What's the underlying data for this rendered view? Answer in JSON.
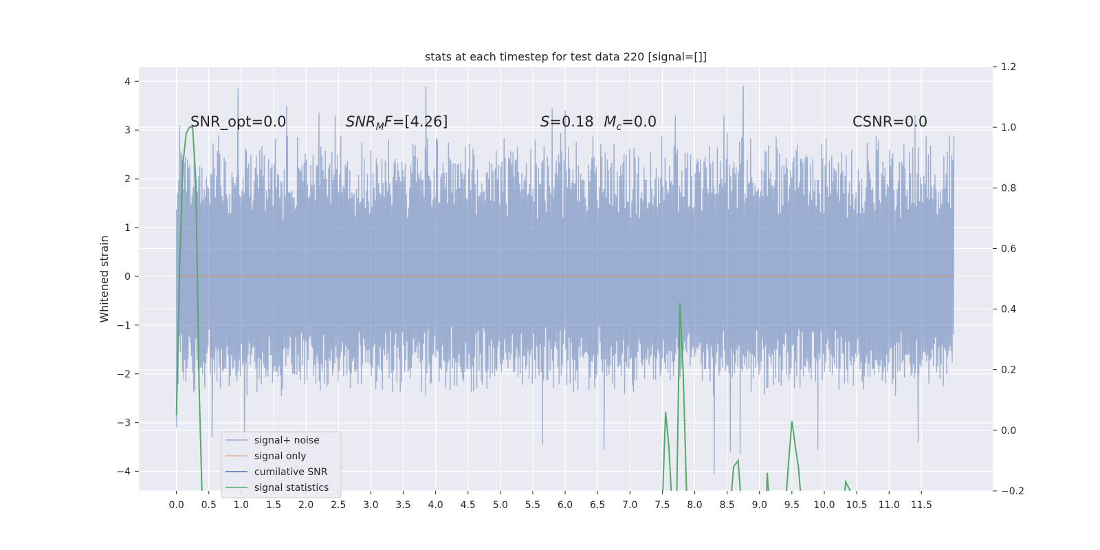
{
  "chart_data": {
    "type": "line",
    "title": "stats at each timestep for test data 220 [signal=[]]",
    "ylabel": "Whitened strain",
    "xlim": [
      -0.58,
      12.6
    ],
    "ylim": [
      -4.4,
      4.3
    ],
    "ylim_right": [
      -0.2,
      1.2
    ],
    "grid": true,
    "x_ticks": [
      "0.0",
      "0.5",
      "1.0",
      "1.5",
      "2.0",
      "2.5",
      "3.0",
      "3.5",
      "4.0",
      "4.5",
      "5.0",
      "5.5",
      "6.0",
      "6.5",
      "7.0",
      "7.5",
      "8.0",
      "8.5",
      "9.0",
      "9.5",
      "10.0",
      "10.5",
      "11.0",
      "11.5"
    ],
    "y_ticks": [
      "4",
      "3",
      "2",
      "1",
      "0",
      "−1",
      "−2",
      "−3",
      "−4"
    ],
    "y_ticks_right": [
      "1.2",
      "1.0",
      "0.8",
      "0.6",
      "0.4",
      "0.2",
      "0.0",
      "−0.2"
    ],
    "annotations": [
      {
        "text": "SNR_opt=0.0"
      },
      {
        "text": "SNRMF=[4.26]"
      },
      {
        "text": "S=0.18   Mc=0.0"
      },
      {
        "text": "CSNR=0.0"
      }
    ],
    "legend": {
      "placement": "lower-left",
      "entries": [
        "signal+ noise",
        "signal only",
        "cumilative SNR",
        "signal statistics"
      ]
    },
    "series": [
      {
        "name": "signal+ noise",
        "axis": "left",
        "color": "#4c72b0",
        "x_range": [
          0.0,
          12.0
        ],
        "typical_envelope": [
          -2.2,
          2.7
        ],
        "peaks": [
          {
            "x": 0.05,
            "y": 3.1
          },
          {
            "x": 0.95,
            "y": 3.85
          },
          {
            "x": 1.7,
            "y": 3.5
          },
          {
            "x": 2.2,
            "y": 3.35
          },
          {
            "x": 2.45,
            "y": 3.3
          },
          {
            "x": 3.85,
            "y": 3.9
          },
          {
            "x": 5.8,
            "y": 3.45
          },
          {
            "x": 6.0,
            "y": 3.4
          },
          {
            "x": 7.7,
            "y": 3.3
          },
          {
            "x": 8.45,
            "y": 3.3
          },
          {
            "x": 8.75,
            "y": 3.9
          },
          {
            "x": 11.4,
            "y": 3.3
          }
        ],
        "troughs": [
          {
            "x": 0.0,
            "y": -3.1
          },
          {
            "x": 0.55,
            "y": -3.3
          },
          {
            "x": 1.05,
            "y": -3.25
          },
          {
            "x": 5.65,
            "y": -3.45
          },
          {
            "x": 6.6,
            "y": -3.55
          },
          {
            "x": 8.3,
            "y": -4.05
          },
          {
            "x": 8.55,
            "y": -3.6
          },
          {
            "x": 8.7,
            "y": -3.65
          },
          {
            "x": 9.9,
            "y": -3.55
          },
          {
            "x": 11.45,
            "y": -3.4
          }
        ]
      },
      {
        "name": "signal only",
        "axis": "left",
        "color": "#dd8452",
        "x": [
          0.0,
          12.0
        ],
        "y": [
          0.0,
          0.0
        ]
      },
      {
        "name": "cumilative SNR",
        "axis": "right",
        "color": "#4c72b0",
        "x": [],
        "y": []
      },
      {
        "name": "signal statistics",
        "axis": "right",
        "color": "#55a868",
        "segments": [
          {
            "x": [
              0.0,
              0.05,
              0.1,
              0.15,
              0.2,
              0.25,
              0.3,
              0.35,
              0.4
            ],
            "y": [
              0.05,
              0.55,
              0.88,
              0.98,
              1.0,
              1.0,
              0.82,
              0.15,
              -0.25
            ]
          },
          {
            "x": [
              7.5,
              7.55,
              7.6,
              7.65
            ],
            "y": [
              -0.25,
              0.06,
              -0.05,
              -0.25
            ]
          },
          {
            "x": [
              7.72,
              7.77,
              7.82,
              7.88
            ],
            "y": [
              -0.25,
              0.42,
              0.2,
              -0.25
            ]
          },
          {
            "x": [
              8.55,
              8.6,
              8.67,
              8.72
            ],
            "y": [
              -0.25,
              -0.12,
              -0.1,
              -0.25
            ]
          },
          {
            "x": [
              9.1,
              9.12,
              9.15
            ],
            "y": [
              -0.25,
              -0.14,
              -0.25
            ]
          },
          {
            "x": [
              9.4,
              9.45,
              9.5,
              9.55,
              9.6,
              9.65
            ],
            "y": [
              -0.25,
              -0.1,
              0.03,
              -0.05,
              -0.12,
              -0.25
            ]
          },
          {
            "x": [
              10.3,
              10.33,
              10.4
            ],
            "y": [
              -0.25,
              -0.17,
              -0.2
            ]
          }
        ]
      }
    ]
  }
}
